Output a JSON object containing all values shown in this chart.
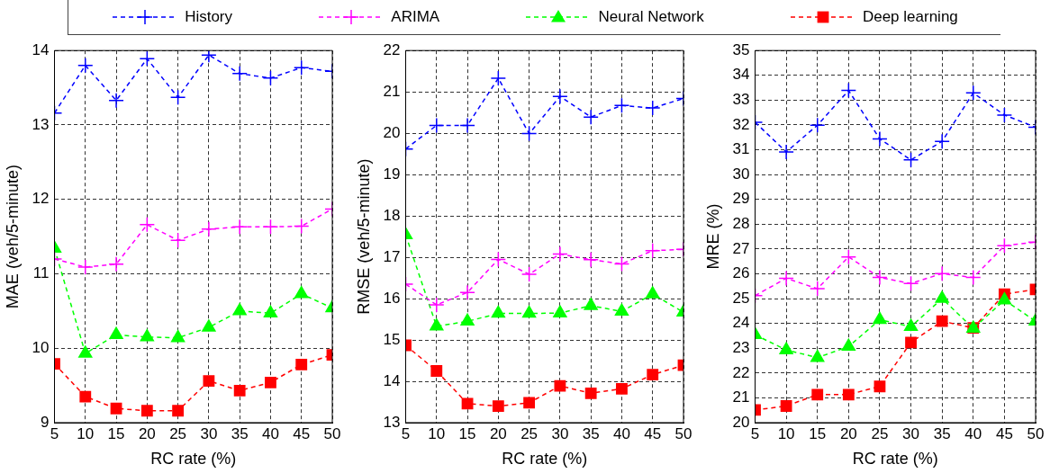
{
  "chart_data": [
    {
      "type": "line",
      "xlabel": "RC rate (%)",
      "ylabel": "MAE (veh/5-minute)",
      "x": [
        5,
        10,
        15,
        20,
        25,
        30,
        35,
        40,
        45,
        50
      ],
      "xlim": [
        5,
        50
      ],
      "xticks": [
        5,
        10,
        15,
        20,
        25,
        30,
        35,
        40,
        45,
        50
      ],
      "ylim": [
        9,
        14
      ],
      "yticks": [
        9,
        10,
        11,
        12,
        13,
        14
      ],
      "grid": true,
      "legend": "top",
      "line_style": "dashed",
      "series": [
        {
          "name": "History",
          "color": "#0000ff",
          "marker": "cross",
          "values": [
            13.16,
            13.8,
            13.33,
            13.89,
            13.37,
            13.94,
            13.69,
            13.63,
            13.77,
            13.72
          ]
        },
        {
          "name": "ARIMA",
          "color": "#ff00ff",
          "marker": "cross",
          "values": [
            11.2,
            11.09,
            11.13,
            11.66,
            11.45,
            11.6,
            11.63,
            11.63,
            11.64,
            11.87
          ]
        },
        {
          "name": "Neural Network",
          "color": "#00ff00",
          "marker": "triangle",
          "values": [
            11.34,
            9.93,
            10.18,
            10.15,
            10.14,
            10.28,
            10.5,
            10.47,
            10.73,
            10.54
          ]
        },
        {
          "name": "Deep learning",
          "color": "#ff0000",
          "marker": "square",
          "values": [
            9.79,
            9.35,
            9.19,
            9.16,
            9.16,
            9.56,
            9.43,
            9.54,
            9.78,
            9.91
          ]
        }
      ]
    },
    {
      "type": "line",
      "xlabel": "RC rate (%)",
      "ylabel": "RMSE (veh/5-minute)",
      "x": [
        5,
        10,
        15,
        20,
        25,
        30,
        35,
        40,
        45,
        50
      ],
      "xlim": [
        5,
        50
      ],
      "xticks": [
        5,
        10,
        15,
        20,
        25,
        30,
        35,
        40,
        45,
        50
      ],
      "ylim": [
        13,
        22
      ],
      "yticks": [
        13,
        14,
        15,
        16,
        17,
        18,
        19,
        20,
        21,
        22
      ],
      "grid": true,
      "line_style": "dashed",
      "series": [
        {
          "color": "#0000ff",
          "marker": "cross",
          "values": [
            19.62,
            20.19,
            20.19,
            21.33,
            19.99,
            20.89,
            20.39,
            20.67,
            20.61,
            20.84
          ]
        },
        {
          "color": "#ff00ff",
          "marker": "cross",
          "values": [
            16.35,
            15.85,
            16.15,
            16.95,
            16.59,
            17.08,
            16.94,
            16.84,
            17.16,
            17.19
          ]
        },
        {
          "color": "#00ff00",
          "marker": "triangle",
          "values": [
            17.54,
            15.33,
            15.45,
            15.64,
            15.64,
            15.65,
            15.83,
            15.69,
            16.11,
            15.67
          ]
        },
        {
          "color": "#ff0000",
          "marker": "square",
          "values": [
            14.87,
            14.25,
            13.46,
            13.4,
            13.48,
            13.89,
            13.71,
            13.82,
            14.16,
            14.39
          ]
        }
      ]
    },
    {
      "type": "line",
      "xlabel": "RC rate (%)",
      "ylabel": "MRE (%)",
      "x": [
        5,
        10,
        15,
        20,
        25,
        30,
        35,
        40,
        45,
        50
      ],
      "xlim": [
        5,
        50
      ],
      "xticks": [
        5,
        10,
        15,
        20,
        25,
        30,
        35,
        40,
        45,
        50
      ],
      "ylim": [
        20,
        35
      ],
      "yticks": [
        20,
        21,
        22,
        23,
        24,
        25,
        26,
        27,
        28,
        29,
        30,
        31,
        32,
        33,
        34,
        35
      ],
      "grid": true,
      "line_style": "dashed",
      "series": [
        {
          "color": "#0000ff",
          "marker": "cross",
          "values": [
            32.11,
            30.91,
            31.99,
            33.39,
            31.44,
            30.59,
            31.34,
            33.29,
            32.4,
            31.91
          ]
        },
        {
          "color": "#ff00ff",
          "marker": "cross",
          "values": [
            25.12,
            25.82,
            25.4,
            26.68,
            25.85,
            25.61,
            26.01,
            25.85,
            27.13,
            27.28
          ]
        },
        {
          "color": "#00ff00",
          "marker": "triangle",
          "values": [
            23.54,
            22.93,
            22.62,
            23.07,
            24.15,
            23.87,
            25,
            23.8,
            24.94,
            24.09
          ]
        },
        {
          "color": "#ff0000",
          "marker": "square",
          "values": [
            20.51,
            20.67,
            21.13,
            21.13,
            21.46,
            23.23,
            24.09,
            23.82,
            25.18,
            25.37
          ]
        }
      ]
    }
  ]
}
